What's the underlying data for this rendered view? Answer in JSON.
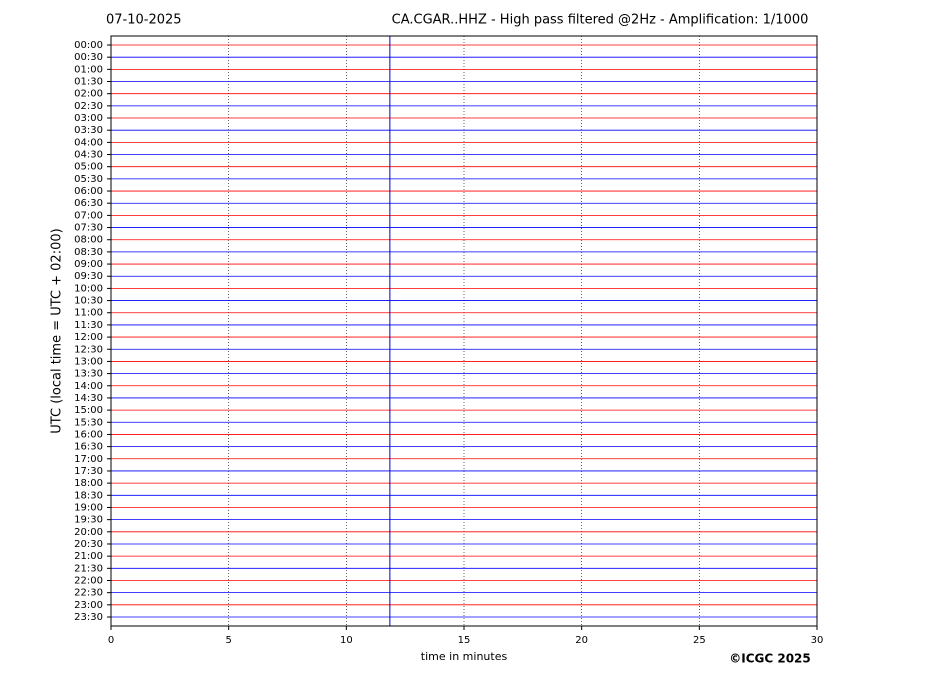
{
  "chart_data": {
    "type": "helicorder",
    "date": "07-10-2025",
    "title": "CA.CGAR..HHZ - High pass filtered @2Hz - Amplification: 1/1000",
    "xlabel": "time in minutes",
    "ylabel": "UTC (local time = UTC + 02:00)",
    "copyright": "©ICGC 2025",
    "categories": [
      "00:00",
      "00:30",
      "01:00",
      "01:30",
      "02:00",
      "02:30",
      "03:00",
      "03:30",
      "04:00",
      "04:30",
      "05:00",
      "05:30",
      "06:00",
      "06:30",
      "07:00",
      "07:30",
      "08:00",
      "08:30",
      "09:00",
      "09:30",
      "10:00",
      "10:30",
      "11:00",
      "11:30",
      "12:00",
      "12:30",
      "13:00",
      "13:30",
      "14:00",
      "14:30",
      "15:00",
      "15:30",
      "16:00",
      "16:30",
      "17:00",
      "17:30",
      "18:00",
      "18:30",
      "19:00",
      "19:30",
      "20:00",
      "20:30",
      "21:00",
      "21:30",
      "22:00",
      "22:30",
      "23:00",
      "23:30"
    ],
    "trace_colors": [
      "#ff0000",
      "#0000ff"
    ],
    "xlim": [
      0,
      30
    ],
    "xticks": [
      0,
      5,
      10,
      15,
      20,
      25,
      30
    ],
    "grid": true,
    "event_x": 11.85
  }
}
